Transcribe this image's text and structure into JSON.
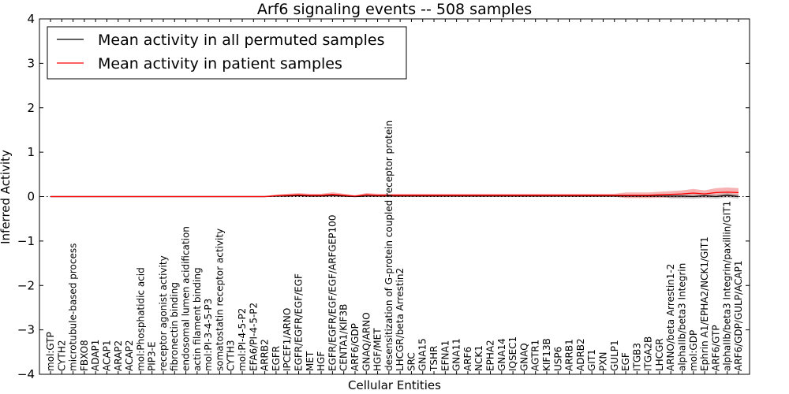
{
  "chart_data": {
    "type": "line",
    "title": "Arf6 signaling events -- 508 samples",
    "xlabel": "Cellular Entities",
    "ylabel": "Inferred Activity",
    "ylim": [
      -4,
      4
    ],
    "yticks": [
      -4,
      -3,
      -2,
      -1,
      0,
      1,
      2,
      3,
      4
    ],
    "legend_position": "top-left",
    "categories": [
      "mol:GTP",
      "CYTH2",
      "microtubule-based process",
      "FBXO8",
      "ADAP1",
      "ACAP1",
      "ARAP2",
      "ACAP2",
      "mol:Phosphatidic acid",
      "PIP3-E",
      "receptor agonist activity",
      "fibronectin binding",
      "endosomal lumen acidification",
      "actin filament binding",
      "mol:PI-3-4-5-P3",
      "somatostatin receptor activity",
      "CYTH3",
      "mol:PI-4-5-P2",
      "EFA6/PI-4-5-P2",
      "ARRB2",
      "EGFR",
      "IPCEF1/ARNO",
      "EGFR/EGFR/EGF/EGF",
      "MET",
      "HGF",
      "EGFR/EGFR/EGF/EGF/ARFGEP100",
      "CENTA1/KIF3B",
      "ARF6/GDP",
      "GNAQ/ARNO",
      "HGF/MET",
      "desensitization of G-protein coupled receptor protein",
      "LHCGR/beta Arrestin2",
      "SRC",
      "GNA15",
      "TSHR",
      "EFNA1",
      "GNA11",
      "ARF6",
      "NCK1",
      "EPHA2",
      "GNA14",
      "IQSEC1",
      "GNAQ",
      "AGTR1",
      "KIF13B",
      "USP6",
      "ARRB1",
      "ADRB2",
      "GIT1",
      "PXN",
      "GULP1",
      "EGF",
      "ITGB3",
      "ITGA2B",
      "LHCGR",
      "ARNO/beta Arrestin1-2",
      "alphaIIb/beta3 Integrin",
      "mol:GDP",
      "Ephrin A1/EPHA2/NCK1/GIT1",
      "ARF6/GTP",
      "alphaIIb/beta3 Integrin/paxillin/GIT1",
      "ARF6/GDP/GULP/ACAP1"
    ],
    "series": [
      {
        "name": "Mean activity in all permuted samples",
        "color": "#000000",
        "values": [
          0,
          0,
          0,
          0,
          0,
          0,
          0,
          0,
          0,
          0,
          0,
          0,
          0,
          0,
          0,
          0,
          0,
          0,
          0,
          0,
          0.01,
          0.01,
          0.02,
          0.01,
          0.01,
          0.02,
          0.01,
          0,
          0.01,
          0.01,
          0.01,
          0.01,
          0.01,
          0.01,
          0.01,
          0.01,
          0.01,
          0.01,
          0.01,
          0.01,
          0.01,
          0.01,
          0.01,
          0.01,
          0.01,
          0.01,
          0.01,
          0.01,
          0.01,
          0.01,
          0.01,
          0.01,
          0.01,
          0.01,
          0.01,
          0.01,
          0.01,
          0,
          0.02,
          0,
          0.03,
          0
        ]
      },
      {
        "name": "Mean activity in patient samples",
        "color": "#ff0000",
        "values": [
          0,
          0,
          0,
          0,
          0,
          0,
          0,
          0,
          0,
          0,
          0,
          0,
          0,
          0,
          0,
          0,
          0,
          0,
          0,
          0,
          0.02,
          0.03,
          0.04,
          0.03,
          0.03,
          0.05,
          0.03,
          0.01,
          0.04,
          0.03,
          0.03,
          0.03,
          0.03,
          0.03,
          0.03,
          0.03,
          0.03,
          0.03,
          0.03,
          0.03,
          0.03,
          0.03,
          0.03,
          0.03,
          0.03,
          0.03,
          0.03,
          0.03,
          0.03,
          0.03,
          0.03,
          0.03,
          0.03,
          0.03,
          0.04,
          0.05,
          0.06,
          0.08,
          0.06,
          0.09,
          0.1,
          0.09
        ]
      }
    ]
  }
}
